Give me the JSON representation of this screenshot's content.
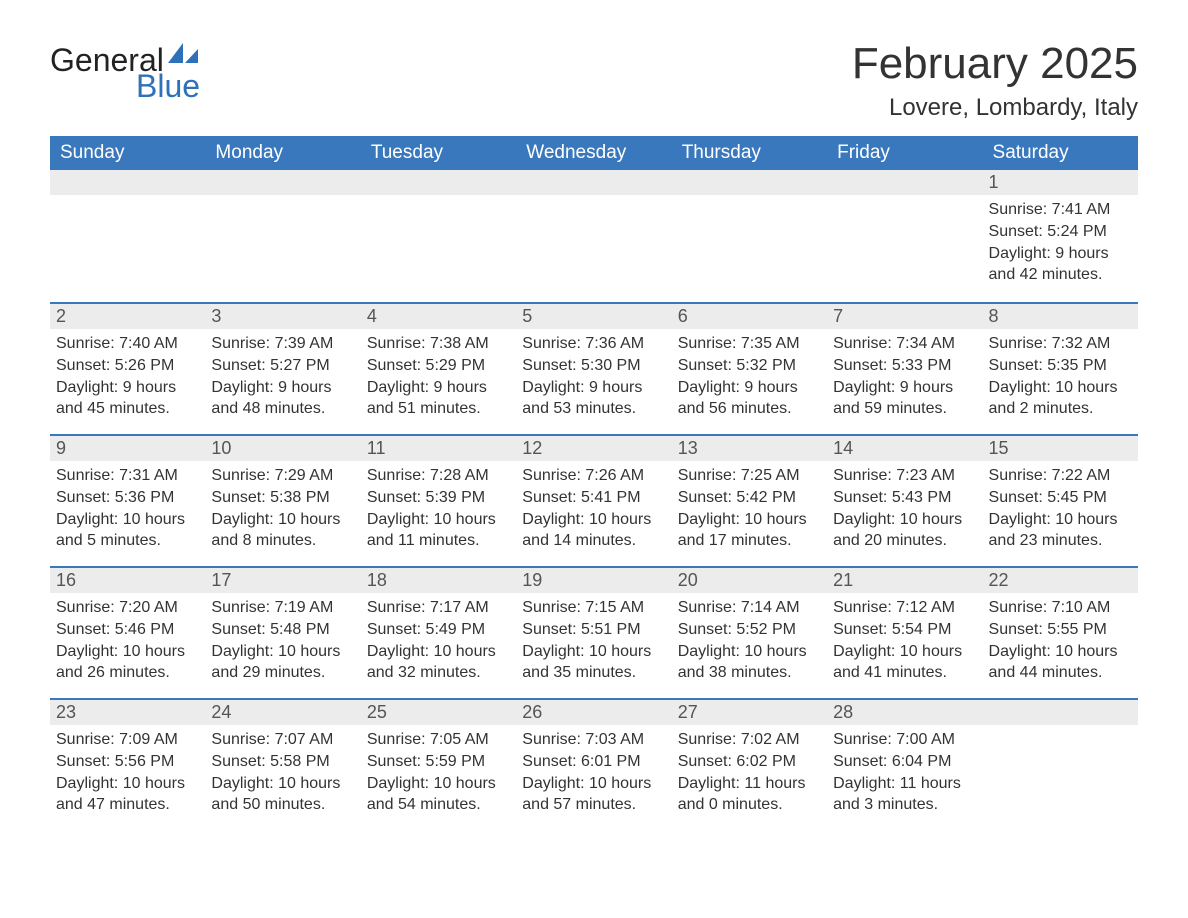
{
  "brand": {
    "part1": "General",
    "part2": "Blue",
    "part1_color": "#222222",
    "part2_color": "#2f71b8"
  },
  "title": "February 2025",
  "location": "Lovere, Lombardy, Italy",
  "colors": {
    "header_bg": "#3a78be",
    "header_text": "#ffffff",
    "daynum_bg": "#ececec",
    "row_border": "#3a78be",
    "body_text": "#333333",
    "page_bg": "#ffffff"
  },
  "typography": {
    "title_fontsize": 44,
    "location_fontsize": 24,
    "weekday_fontsize": 19,
    "daynum_fontsize": 18,
    "body_fontsize": 16
  },
  "weekdays": [
    "Sunday",
    "Monday",
    "Tuesday",
    "Wednesday",
    "Thursday",
    "Friday",
    "Saturday"
  ],
  "first_weekday_index": 6,
  "days": [
    {
      "n": 1,
      "sunrise": "7:41 AM",
      "sunset": "5:24 PM",
      "daylight": "9 hours and 42 minutes."
    },
    {
      "n": 2,
      "sunrise": "7:40 AM",
      "sunset": "5:26 PM",
      "daylight": "9 hours and 45 minutes."
    },
    {
      "n": 3,
      "sunrise": "7:39 AM",
      "sunset": "5:27 PM",
      "daylight": "9 hours and 48 minutes."
    },
    {
      "n": 4,
      "sunrise": "7:38 AM",
      "sunset": "5:29 PM",
      "daylight": "9 hours and 51 minutes."
    },
    {
      "n": 5,
      "sunrise": "7:36 AM",
      "sunset": "5:30 PM",
      "daylight": "9 hours and 53 minutes."
    },
    {
      "n": 6,
      "sunrise": "7:35 AM",
      "sunset": "5:32 PM",
      "daylight": "9 hours and 56 minutes."
    },
    {
      "n": 7,
      "sunrise": "7:34 AM",
      "sunset": "5:33 PM",
      "daylight": "9 hours and 59 minutes."
    },
    {
      "n": 8,
      "sunrise": "7:32 AM",
      "sunset": "5:35 PM",
      "daylight": "10 hours and 2 minutes."
    },
    {
      "n": 9,
      "sunrise": "7:31 AM",
      "sunset": "5:36 PM",
      "daylight": "10 hours and 5 minutes."
    },
    {
      "n": 10,
      "sunrise": "7:29 AM",
      "sunset": "5:38 PM",
      "daylight": "10 hours and 8 minutes."
    },
    {
      "n": 11,
      "sunrise": "7:28 AM",
      "sunset": "5:39 PM",
      "daylight": "10 hours and 11 minutes."
    },
    {
      "n": 12,
      "sunrise": "7:26 AM",
      "sunset": "5:41 PM",
      "daylight": "10 hours and 14 minutes."
    },
    {
      "n": 13,
      "sunrise": "7:25 AM",
      "sunset": "5:42 PM",
      "daylight": "10 hours and 17 minutes."
    },
    {
      "n": 14,
      "sunrise": "7:23 AM",
      "sunset": "5:43 PM",
      "daylight": "10 hours and 20 minutes."
    },
    {
      "n": 15,
      "sunrise": "7:22 AM",
      "sunset": "5:45 PM",
      "daylight": "10 hours and 23 minutes."
    },
    {
      "n": 16,
      "sunrise": "7:20 AM",
      "sunset": "5:46 PM",
      "daylight": "10 hours and 26 minutes."
    },
    {
      "n": 17,
      "sunrise": "7:19 AM",
      "sunset": "5:48 PM",
      "daylight": "10 hours and 29 minutes."
    },
    {
      "n": 18,
      "sunrise": "7:17 AM",
      "sunset": "5:49 PM",
      "daylight": "10 hours and 32 minutes."
    },
    {
      "n": 19,
      "sunrise": "7:15 AM",
      "sunset": "5:51 PM",
      "daylight": "10 hours and 35 minutes."
    },
    {
      "n": 20,
      "sunrise": "7:14 AM",
      "sunset": "5:52 PM",
      "daylight": "10 hours and 38 minutes."
    },
    {
      "n": 21,
      "sunrise": "7:12 AM",
      "sunset": "5:54 PM",
      "daylight": "10 hours and 41 minutes."
    },
    {
      "n": 22,
      "sunrise": "7:10 AM",
      "sunset": "5:55 PM",
      "daylight": "10 hours and 44 minutes."
    },
    {
      "n": 23,
      "sunrise": "7:09 AM",
      "sunset": "5:56 PM",
      "daylight": "10 hours and 47 minutes."
    },
    {
      "n": 24,
      "sunrise": "7:07 AM",
      "sunset": "5:58 PM",
      "daylight": "10 hours and 50 minutes."
    },
    {
      "n": 25,
      "sunrise": "7:05 AM",
      "sunset": "5:59 PM",
      "daylight": "10 hours and 54 minutes."
    },
    {
      "n": 26,
      "sunrise": "7:03 AM",
      "sunset": "6:01 PM",
      "daylight": "10 hours and 57 minutes."
    },
    {
      "n": 27,
      "sunrise": "7:02 AM",
      "sunset": "6:02 PM",
      "daylight": "11 hours and 0 minutes."
    },
    {
      "n": 28,
      "sunrise": "7:00 AM",
      "sunset": "6:04 PM",
      "daylight": "11 hours and 3 minutes."
    }
  ],
  "labels": {
    "sunrise": "Sunrise:",
    "sunset": "Sunset:",
    "daylight": "Daylight:"
  }
}
